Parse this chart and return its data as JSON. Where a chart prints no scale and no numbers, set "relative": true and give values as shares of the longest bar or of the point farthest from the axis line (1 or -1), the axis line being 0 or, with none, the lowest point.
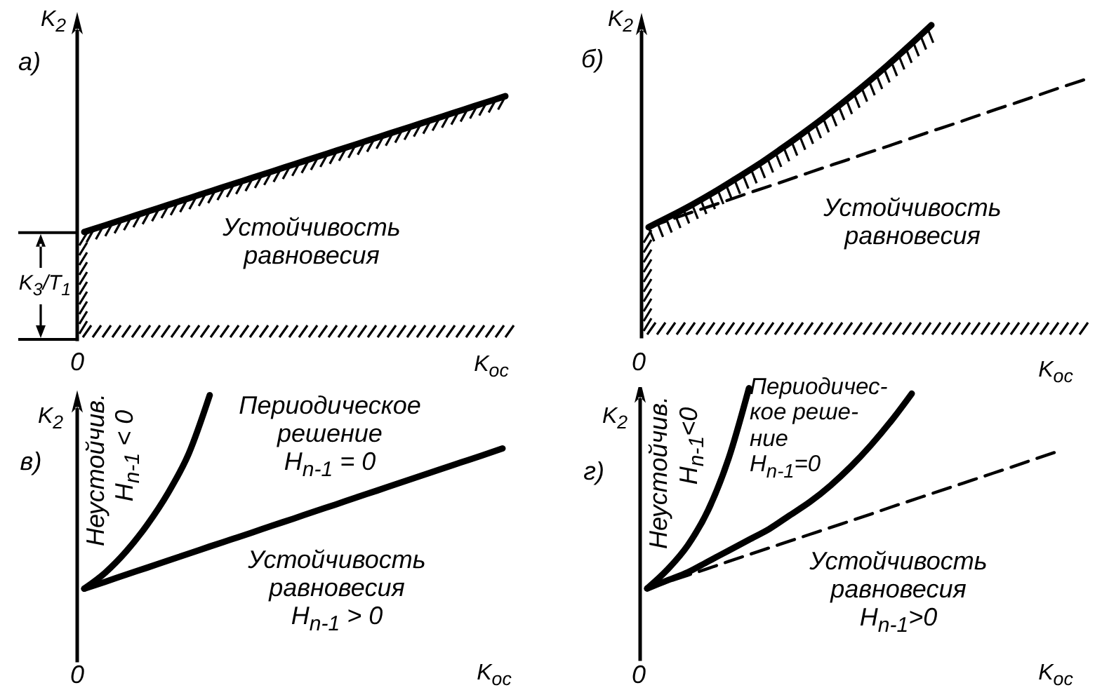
{
  "chart_data": [
    {
      "type": "line",
      "title": "а)",
      "xlabel": "K$_{ос}$",
      "ylabel": "K$_{2}$",
      "relative": true,
      "marker": "none",
      "categories": [
        null,
        null,
        null,
        null,
        null,
        null,
        null,
        null,
        null,
        null,
        null,
        null,
        null,
        null,
        null,
        null,
        null,
        null,
        null,
        null,
        null
      ],
      "series": [
        {
          "color": "#000000",
          "line_style": "solid",
          "values": [
            0.44,
            0.468,
            0.496,
            0.524,
            0.552,
            0.58,
            0.608,
            0.636,
            0.664,
            0.692,
            0.72,
            0.748,
            0.776,
            0.804,
            0.832,
            0.86,
            0.888,
            0.916,
            0.944,
            0.972,
            1
          ]
        }
      ],
      "annotations": [
        "Устойчивость\nравновесия",
        "K$_{3}$/T$_{1}$",
        "0"
      ]
    },
    {
      "type": "line",
      "title": "б)",
      "xlabel": "K$_{ос}$",
      "ylabel": "K$_{2}$",
      "relative": true,
      "marker": "none",
      "categories": [
        null,
        null,
        null,
        null,
        null,
        null,
        null,
        null,
        null,
        null,
        null,
        null,
        null,
        null,
        null,
        null,
        null,
        null,
        null,
        null,
        null
      ],
      "series": [
        {
          "color": "#000000",
          "line_style": "solid",
          "values": [
            0.351,
            0.386,
            0.423,
            0.463,
            0.506,
            0.55,
            0.598,
            0.648,
            0.7,
            0.755,
            0.812,
            0.872,
            0.935,
            1,
            null,
            null,
            null,
            null,
            null,
            null,
            null
          ]
        },
        {
          "color": "#000000",
          "line_style": "dashed",
          "values": [
            0.351,
            0.375,
            0.399,
            0.422,
            0.446,
            0.47,
            0.493,
            0.517,
            0.541,
            0.564,
            0.588,
            0.611,
            0.635,
            0.659,
            0.682,
            0.706,
            0.73,
            0.753,
            0.777,
            0.801,
            0.824
          ]
        }
      ],
      "annotations": [
        "Устойчивость\nравновесия",
        "0"
      ]
    },
    {
      "type": "line",
      "title": "в)",
      "xlabel": "K$_{ос}$",
      "ylabel": "K$_{2}$",
      "relative": true,
      "marker": "none",
      "categories": [
        null,
        null,
        null,
        null,
        null,
        null,
        null,
        null,
        null,
        null,
        null,
        null,
        null,
        null,
        null,
        null,
        null,
        null,
        null,
        null,
        null
      ],
      "series": [
        {
          "color": "#000000",
          "line_style": "solid",
          "values": [
            0.27,
            0.33,
            0.41,
            0.51,
            0.63,
            0.78,
            1,
            null,
            null,
            null,
            null,
            null,
            null,
            null,
            null,
            null,
            null,
            null,
            null,
            null,
            null
          ]
        },
        {
          "color": "#000000",
          "line_style": "solid",
          "values": [
            0.27,
            0.296,
            0.323,
            0.349,
            0.376,
            0.402,
            0.429,
            0.455,
            0.481,
            0.508,
            0.534,
            0.561,
            0.587,
            0.614,
            0.64,
            0.667,
            0.693,
            0.72,
            0.746,
            0.772,
            0.799
          ]
        }
      ],
      "annotations": [
        "Неустойчив.",
        "H$_{n-1}$ < 0",
        "Периодическое\nрешение\nH$_{n-1}$ = 0",
        "Устойчивость\nравновесия\nH$_{n-1}$ > 0",
        "0"
      ]
    },
    {
      "type": "line",
      "title": "г)",
      "xlabel": "K$_{ос}$",
      "ylabel": "K$_{2}$",
      "relative": true,
      "marker": "none",
      "categories": [
        null,
        null,
        null,
        null,
        null,
        null,
        null,
        null,
        null,
        null,
        null,
        null,
        null,
        null,
        null,
        null,
        null,
        null,
        null,
        null,
        null
      ],
      "series": [
        {
          "color": "#000000",
          "line_style": "solid",
          "values": [
            0.26,
            0.33,
            0.42,
            0.55,
            0.74,
            1,
            null,
            null,
            null,
            null,
            null,
            null,
            null,
            null,
            null,
            null,
            null,
            null,
            null,
            null,
            null
          ]
        },
        {
          "color": "#000000",
          "line_style": "solid",
          "values": [
            0.26,
            0.29,
            0.32,
            0.36,
            0.4,
            0.44,
            0.48,
            0.53,
            0.58,
            0.64,
            0.71,
            0.79,
            0.88,
            0.98,
            null,
            null,
            null,
            null,
            null,
            null,
            null
          ]
        },
        {
          "color": "#000000",
          "line_style": "dashed",
          "values": [
            0.26,
            0.284,
            0.309,
            0.334,
            0.36,
            0.385,
            0.41,
            0.435,
            0.46,
            0.485,
            0.51,
            0.535,
            0.561,
            0.586,
            0.611,
            0.636,
            0.661,
            0.686,
            0.711,
            0.737,
            0.762
          ]
        }
      ],
      "annotations": [
        "Неустойчив.",
        "H$_{n-1}$<0",
        "Периодичес-\nкое реше-\nние\nH$_{n-1}$=0",
        "Устойчивость\nравновесия\nH$_{n-1}$>0",
        "0"
      ]
    }
  ]
}
